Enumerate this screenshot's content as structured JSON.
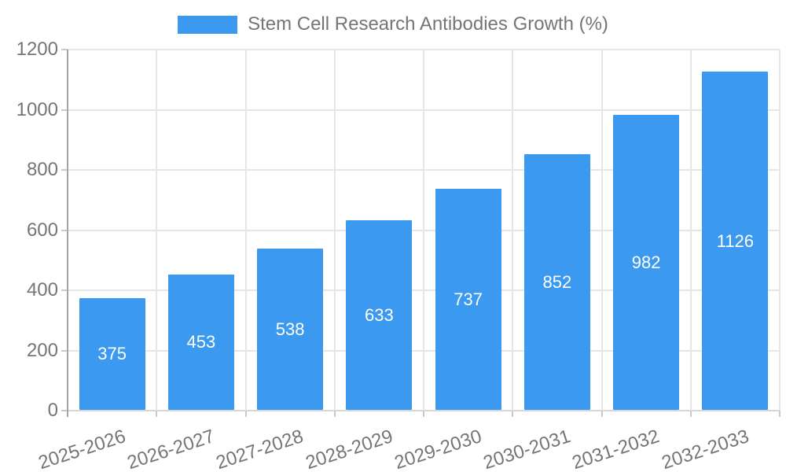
{
  "legend": {
    "label": "Stem Cell Research Antibodies Growth (%)"
  },
  "chart_data": {
    "type": "bar",
    "title": "Stem Cell Research Antibodies Growth (%)",
    "categories": [
      "2025-2026",
      "2026-2027",
      "2027-2028",
      "2028-2029",
      "2029-2030",
      "2030-2031",
      "2031-2032",
      "2032-2033"
    ],
    "values": [
      375,
      453,
      538,
      633,
      737,
      852,
      982,
      1126
    ],
    "xlabel": "",
    "ylabel": "",
    "ylim": [
      0,
      1200
    ],
    "yticks": [
      0,
      200,
      400,
      600,
      800,
      1000,
      1200
    ],
    "grid": true,
    "legend_position": "top-center",
    "bar_labels": "centered-inside-white",
    "colors": {
      "bar": "#3B99F0",
      "bar_label": "#FFFFFF",
      "axis_text": "#757575",
      "gridline": "#E6E6E6",
      "y_axis_line": "#A5A5A5",
      "x_axis_line": "#D6D6D6"
    }
  }
}
